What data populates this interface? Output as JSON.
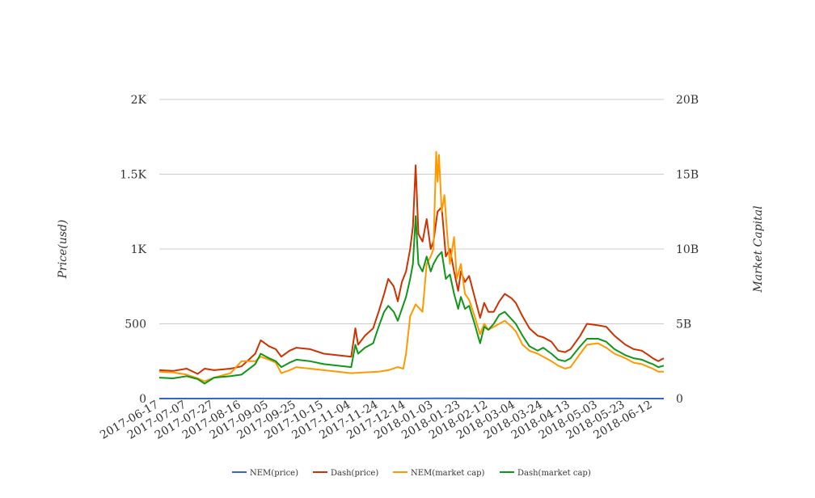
{
  "chart_data": {
    "type": "line",
    "ylabel_left": "Price(usd)",
    "ylabel_right": "Market Capital",
    "ylim_left": [
      0,
      2000
    ],
    "ylim_right": [
      0,
      20000000000
    ],
    "left_ticks": [
      {
        "value": 0,
        "label": "0"
      },
      {
        "value": 500,
        "label": "500"
      },
      {
        "value": 1000,
        "label": "1K"
      },
      {
        "value": 1500,
        "label": "1.5K"
      },
      {
        "value": 2000,
        "label": "2K"
      }
    ],
    "right_ticks": [
      {
        "value": 0,
        "label": "0"
      },
      {
        "value": 5000000000,
        "label": "5B"
      },
      {
        "value": 10000000000,
        "label": "10B"
      },
      {
        "value": 15000000000,
        "label": "15B"
      },
      {
        "value": 20000000000,
        "label": "20B"
      }
    ],
    "x_start": "2017-06-17",
    "x_end": "2018-06-20",
    "x_ticks": [
      "2017-06-17",
      "2017-07-07",
      "2017-07-27",
      "2017-08-16",
      "2017-09-05",
      "2017-09-25",
      "2017-10-15",
      "2017-11-04",
      "2017-11-24",
      "2017-12-14",
      "2018-01-03",
      "2018-01-23",
      "2018-02-12",
      "2018-03-04",
      "2018-03-24",
      "2018-04-13",
      "2018-05-03",
      "2018-05-23",
      "2018-06-12"
    ],
    "grid": true,
    "legend_position": "bottom",
    "series": [
      {
        "name": "NEM(price)",
        "axis": "left",
        "color": "#3366cc",
        "points": [
          [
            "2017-06-17",
            0.2
          ],
          [
            "2017-08-16",
            0.3
          ],
          [
            "2017-11-04",
            0.2
          ],
          [
            "2017-12-14",
            0.5
          ],
          [
            "2018-01-03",
            1.6
          ],
          [
            "2018-01-23",
            1.0
          ],
          [
            "2018-02-12",
            0.4
          ],
          [
            "2018-04-13",
            0.25
          ],
          [
            "2018-05-03",
            0.4
          ],
          [
            "2018-06-12",
            0.2
          ],
          [
            "2018-06-20",
            0.18
          ]
        ]
      },
      {
        "name": "Dash(price)",
        "axis": "left",
        "color": "#cc3300",
        "points": [
          [
            "2017-06-17",
            190
          ],
          [
            "2017-06-27",
            185
          ],
          [
            "2017-07-07",
            200
          ],
          [
            "2017-07-15",
            165
          ],
          [
            "2017-07-20",
            200
          ],
          [
            "2017-07-27",
            190
          ],
          [
            "2017-08-08",
            200
          ],
          [
            "2017-08-16",
            215
          ],
          [
            "2017-08-26",
            300
          ],
          [
            "2017-08-30",
            390
          ],
          [
            "2017-09-05",
            350
          ],
          [
            "2017-09-10",
            330
          ],
          [
            "2017-09-14",
            280
          ],
          [
            "2017-09-20",
            320
          ],
          [
            "2017-09-25",
            340
          ],
          [
            "2017-10-05",
            330
          ],
          [
            "2017-10-15",
            300
          ],
          [
            "2017-10-25",
            290
          ],
          [
            "2017-11-04",
            280
          ],
          [
            "2017-11-07",
            470
          ],
          [
            "2017-11-09",
            360
          ],
          [
            "2017-11-14",
            420
          ],
          [
            "2017-11-20",
            470
          ],
          [
            "2017-11-24",
            580
          ],
          [
            "2017-11-28",
            700
          ],
          [
            "2017-12-01",
            800
          ],
          [
            "2017-12-05",
            750
          ],
          [
            "2017-12-08",
            650
          ],
          [
            "2017-12-11",
            780
          ],
          [
            "2017-12-14",
            850
          ],
          [
            "2017-12-17",
            1000
          ],
          [
            "2017-12-19",
            1150
          ],
          [
            "2017-12-21",
            1560
          ],
          [
            "2017-12-23",
            1100
          ],
          [
            "2017-12-26",
            1050
          ],
          [
            "2017-12-29",
            1200
          ],
          [
            "2018-01-01",
            1000
          ],
          [
            "2018-01-03",
            1050
          ],
          [
            "2018-01-06",
            1250
          ],
          [
            "2018-01-09",
            1280
          ],
          [
            "2018-01-12",
            950
          ],
          [
            "2018-01-15",
            1000
          ],
          [
            "2018-01-18",
            850
          ],
          [
            "2018-01-21",
            720
          ],
          [
            "2018-01-23",
            850
          ],
          [
            "2018-01-26",
            780
          ],
          [
            "2018-01-29",
            820
          ],
          [
            "2018-02-02",
            680
          ],
          [
            "2018-02-06",
            540
          ],
          [
            "2018-02-09",
            640
          ],
          [
            "2018-02-12",
            580
          ],
          [
            "2018-02-16",
            580
          ],
          [
            "2018-02-20",
            650
          ],
          [
            "2018-02-24",
            700
          ],
          [
            "2018-03-01",
            670
          ],
          [
            "2018-03-04",
            640
          ],
          [
            "2018-03-09",
            550
          ],
          [
            "2018-03-14",
            470
          ],
          [
            "2018-03-20",
            420
          ],
          [
            "2018-03-24",
            410
          ],
          [
            "2018-03-30",
            380
          ],
          [
            "2018-04-04",
            320
          ],
          [
            "2018-04-09",
            310
          ],
          [
            "2018-04-13",
            330
          ],
          [
            "2018-04-20",
            420
          ],
          [
            "2018-04-25",
            500
          ],
          [
            "2018-05-03",
            490
          ],
          [
            "2018-05-09",
            480
          ],
          [
            "2018-05-15",
            420
          ],
          [
            "2018-05-23",
            360
          ],
          [
            "2018-05-29",
            330
          ],
          [
            "2018-06-04",
            320
          ],
          [
            "2018-06-09",
            290
          ],
          [
            "2018-06-12",
            270
          ],
          [
            "2018-06-16",
            250
          ],
          [
            "2018-06-20",
            270
          ]
        ]
      },
      {
        "name": "NEM(market cap)",
        "axis": "right",
        "color": "#ff9900",
        "points": [
          [
            "2017-06-17",
            1800000000
          ],
          [
            "2017-06-27",
            1750000000
          ],
          [
            "2017-07-07",
            1600000000
          ],
          [
            "2017-07-15",
            1350000000
          ],
          [
            "2017-07-20",
            1150000000
          ],
          [
            "2017-07-27",
            1400000000
          ],
          [
            "2017-08-08",
            1700000000
          ],
          [
            "2017-08-16",
            2500000000
          ],
          [
            "2017-08-26",
            2500000000
          ],
          [
            "2017-08-30",
            2800000000
          ],
          [
            "2017-09-05",
            2600000000
          ],
          [
            "2017-09-10",
            2400000000
          ],
          [
            "2017-09-14",
            1700000000
          ],
          [
            "2017-09-20",
            1900000000
          ],
          [
            "2017-09-25",
            2100000000
          ],
          [
            "2017-10-05",
            2000000000
          ],
          [
            "2017-10-15",
            1900000000
          ],
          [
            "2017-10-25",
            1800000000
          ],
          [
            "2017-11-04",
            1700000000
          ],
          [
            "2017-11-14",
            1750000000
          ],
          [
            "2017-11-24",
            1800000000
          ],
          [
            "2017-12-01",
            1900000000
          ],
          [
            "2017-12-08",
            2100000000
          ],
          [
            "2017-12-12",
            2000000000
          ],
          [
            "2017-12-14",
            3000000000
          ],
          [
            "2017-12-17",
            5500000000
          ],
          [
            "2017-12-21",
            6300000000
          ],
          [
            "2017-12-26",
            5800000000
          ],
          [
            "2017-12-29",
            9000000000
          ],
          [
            "2018-01-01",
            9500000000
          ],
          [
            "2018-01-03",
            10000000000
          ],
          [
            "2018-01-05",
            16500000000
          ],
          [
            "2018-01-06",
            14500000000
          ],
          [
            "2018-01-07",
            16300000000
          ],
          [
            "2018-01-09",
            12500000000
          ],
          [
            "2018-01-11",
            13600000000
          ],
          [
            "2018-01-13",
            11000000000
          ],
          [
            "2018-01-15",
            9000000000
          ],
          [
            "2018-01-18",
            10800000000
          ],
          [
            "2018-01-20",
            8000000000
          ],
          [
            "2018-01-23",
            9000000000
          ],
          [
            "2018-01-26",
            7000000000
          ],
          [
            "2018-01-29",
            6600000000
          ],
          [
            "2018-02-02",
            5500000000
          ],
          [
            "2018-02-06",
            4300000000
          ],
          [
            "2018-02-09",
            5000000000
          ],
          [
            "2018-02-12",
            4600000000
          ],
          [
            "2018-02-16",
            4800000000
          ],
          [
            "2018-02-20",
            5000000000
          ],
          [
            "2018-02-24",
            5200000000
          ],
          [
            "2018-03-01",
            4800000000
          ],
          [
            "2018-03-04",
            4500000000
          ],
          [
            "2018-03-09",
            3600000000
          ],
          [
            "2018-03-14",
            3200000000
          ],
          [
            "2018-03-20",
            3000000000
          ],
          [
            "2018-03-24",
            2800000000
          ],
          [
            "2018-03-30",
            2500000000
          ],
          [
            "2018-04-04",
            2200000000
          ],
          [
            "2018-04-09",
            2000000000
          ],
          [
            "2018-04-13",
            2100000000
          ],
          [
            "2018-04-20",
            3000000000
          ],
          [
            "2018-04-25",
            3600000000
          ],
          [
            "2018-05-03",
            3700000000
          ],
          [
            "2018-05-09",
            3400000000
          ],
          [
            "2018-05-15",
            3000000000
          ],
          [
            "2018-05-23",
            2700000000
          ],
          [
            "2018-05-29",
            2400000000
          ],
          [
            "2018-06-04",
            2300000000
          ],
          [
            "2018-06-09",
            2100000000
          ],
          [
            "2018-06-12",
            2000000000
          ],
          [
            "2018-06-16",
            1800000000
          ],
          [
            "2018-06-20",
            1800000000
          ]
        ]
      },
      {
        "name": "Dash(market cap)",
        "axis": "right",
        "color": "#109618",
        "points": [
          [
            "2017-06-17",
            1400000000
          ],
          [
            "2017-06-27",
            1350000000
          ],
          [
            "2017-07-07",
            1500000000
          ],
          [
            "2017-07-15",
            1300000000
          ],
          [
            "2017-07-20",
            1000000000
          ],
          [
            "2017-07-27",
            1400000000
          ],
          [
            "2017-08-08",
            1500000000
          ],
          [
            "2017-08-16",
            1600000000
          ],
          [
            "2017-08-26",
            2300000000
          ],
          [
            "2017-08-30",
            3000000000
          ],
          [
            "2017-09-05",
            2700000000
          ],
          [
            "2017-09-10",
            2500000000
          ],
          [
            "2017-09-14",
            2100000000
          ],
          [
            "2017-09-20",
            2400000000
          ],
          [
            "2017-09-25",
            2600000000
          ],
          [
            "2017-10-05",
            2500000000
          ],
          [
            "2017-10-15",
            2300000000
          ],
          [
            "2017-10-25",
            2200000000
          ],
          [
            "2017-11-04",
            2100000000
          ],
          [
            "2017-11-07",
            3600000000
          ],
          [
            "2017-11-09",
            3000000000
          ],
          [
            "2017-11-14",
            3400000000
          ],
          [
            "2017-11-20",
            3700000000
          ],
          [
            "2017-11-24",
            4800000000
          ],
          [
            "2017-11-28",
            5800000000
          ],
          [
            "2017-12-01",
            6200000000
          ],
          [
            "2017-12-05",
            5800000000
          ],
          [
            "2017-12-08",
            5200000000
          ],
          [
            "2017-12-11",
            6000000000
          ],
          [
            "2017-12-14",
            6800000000
          ],
          [
            "2017-12-17",
            8000000000
          ],
          [
            "2017-12-19",
            9000000000
          ],
          [
            "2017-12-21",
            12200000000
          ],
          [
            "2017-12-23",
            9000000000
          ],
          [
            "2017-12-26",
            8500000000
          ],
          [
            "2017-12-29",
            9500000000
          ],
          [
            "2018-01-01",
            8500000000
          ],
          [
            "2018-01-03",
            9000000000
          ],
          [
            "2018-01-06",
            9500000000
          ],
          [
            "2018-01-09",
            9800000000
          ],
          [
            "2018-01-12",
            8000000000
          ],
          [
            "2018-01-15",
            8300000000
          ],
          [
            "2018-01-18",
            7000000000
          ],
          [
            "2018-01-21",
            6000000000
          ],
          [
            "2018-01-23",
            6800000000
          ],
          [
            "2018-01-26",
            6000000000
          ],
          [
            "2018-01-29",
            6200000000
          ],
          [
            "2018-02-02",
            5000000000
          ],
          [
            "2018-02-06",
            3700000000
          ],
          [
            "2018-02-09",
            4800000000
          ],
          [
            "2018-02-12",
            4600000000
          ],
          [
            "2018-02-16",
            5000000000
          ],
          [
            "2018-02-20",
            5600000000
          ],
          [
            "2018-02-24",
            5800000000
          ],
          [
            "2018-03-01",
            5300000000
          ],
          [
            "2018-03-04",
            5000000000
          ],
          [
            "2018-03-09",
            4200000000
          ],
          [
            "2018-03-14",
            3500000000
          ],
          [
            "2018-03-20",
            3200000000
          ],
          [
            "2018-03-24",
            3400000000
          ],
          [
            "2018-03-30",
            3000000000
          ],
          [
            "2018-04-04",
            2600000000
          ],
          [
            "2018-04-09",
            2500000000
          ],
          [
            "2018-04-13",
            2700000000
          ],
          [
            "2018-04-20",
            3500000000
          ],
          [
            "2018-04-25",
            4000000000
          ],
          [
            "2018-05-03",
            4000000000
          ],
          [
            "2018-05-09",
            3800000000
          ],
          [
            "2018-05-15",
            3300000000
          ],
          [
            "2018-05-23",
            2900000000
          ],
          [
            "2018-05-29",
            2700000000
          ],
          [
            "2018-06-04",
            2600000000
          ],
          [
            "2018-06-09",
            2400000000
          ],
          [
            "2018-06-12",
            2300000000
          ],
          [
            "2018-06-16",
            2100000000
          ],
          [
            "2018-06-20",
            2200000000
          ]
        ]
      }
    ]
  }
}
